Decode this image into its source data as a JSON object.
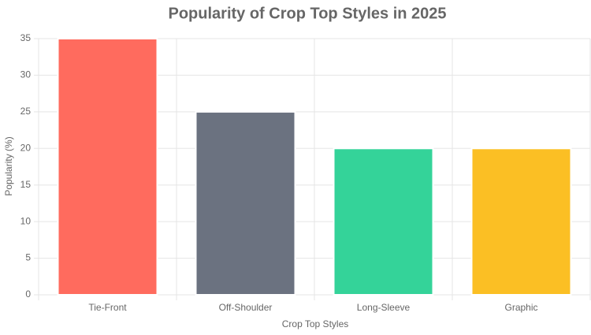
{
  "chart_data": {
    "type": "bar",
    "title": "Popularity of Crop Top Styles in 2025",
    "x_label": "Crop Top Styles",
    "y_label": "Popularity (%)",
    "categories": [
      "Tie-Front",
      "Off-Shoulder",
      "Long-Sleeve",
      "Graphic"
    ],
    "values": [
      35,
      25,
      20,
      20
    ],
    "colors": [
      "#ff6b5e",
      "#6b7280",
      "#34d399",
      "#fbbf24"
    ],
    "ylim": [
      0,
      35
    ],
    "yticks": [
      0,
      5,
      10,
      15,
      20,
      25,
      30,
      35
    ],
    "grid": true
  }
}
